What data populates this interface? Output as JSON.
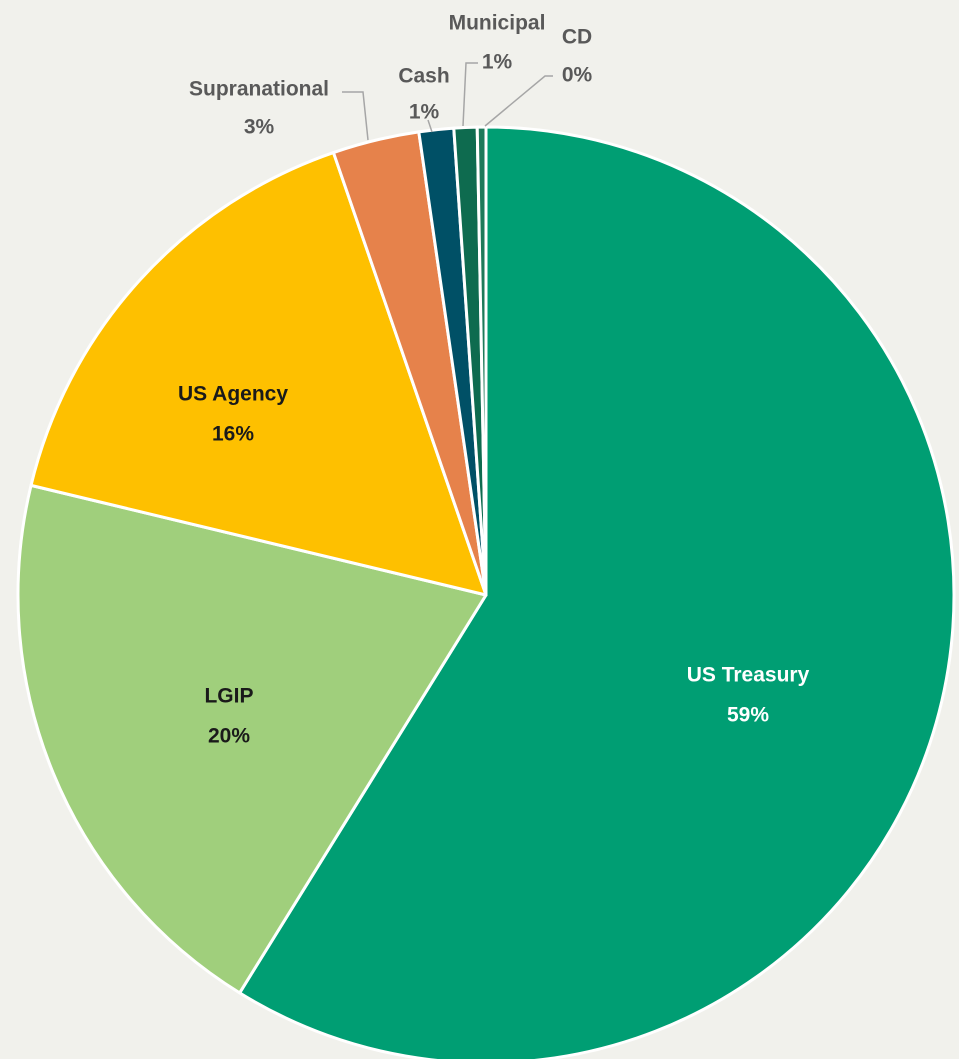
{
  "chart_data": {
    "type": "pie",
    "title": "",
    "series": [
      {
        "values": [
          {
            "category": "US Treasury",
            "value": 59,
            "label": "59%",
            "color": "#009e73"
          },
          {
            "category": "LGIP",
            "value": 20,
            "label": "20%",
            "color": "#a0cf7c"
          },
          {
            "category": "US Agency",
            "value": 16,
            "label": "16%",
            "color": "#fec000"
          },
          {
            "category": "Supranational",
            "value": 3,
            "label": "3%",
            "color": "#e6824b"
          },
          {
            "category": "Cash",
            "value": 1.2,
            "label": "1%",
            "color": "#005066"
          },
          {
            "category": "Municipal",
            "value": 0.8,
            "label": "1%",
            "color": "#0e6b4f"
          },
          {
            "category": "CD",
            "value": 0.3,
            "label": "0%",
            "color": "#1e7a5a"
          }
        ]
      }
    ],
    "start_angle": "12 o'clock",
    "direction": "clockwise",
    "slice_border_color": "#ffffff",
    "label_color_inside_dark": "#ffffff",
    "label_color_inside_light": "#1a1a1a",
    "label_color_outside": "#595959",
    "leader_line_color": "#a6a6a6",
    "background_color": "#f1f1ec"
  }
}
